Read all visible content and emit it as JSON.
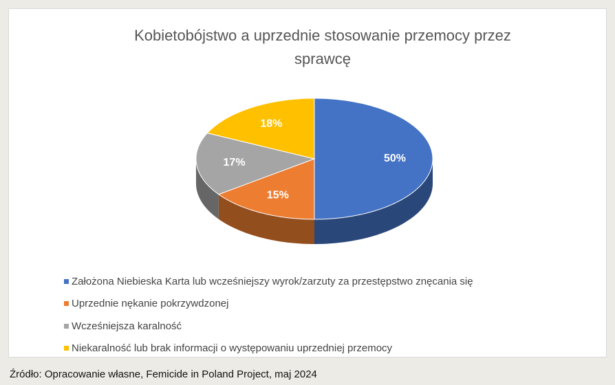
{
  "chart_data": {
    "type": "pie",
    "title": "Kobietobójstwo a uprzednie stosowanie przemocy przez sprawcę",
    "categories": [
      "Założona Niebieska Karta lub wcześniejszy wyrok/zarzuty za przestępstwo znęcania się",
      "Uprzednie nękanie pokrzywdzonej",
      "Wcześniejsza karalność",
      "Niekaralność lub brak informacji o występowaniu uprzedniej przemocy"
    ],
    "values": [
      50,
      15,
      17,
      18
    ],
    "value_labels": [
      "50%",
      "15%",
      "17%",
      "18%"
    ],
    "colors": [
      "#4472c4",
      "#ed7d31",
      "#a5a5a5",
      "#ffc000"
    ],
    "source": "Źródło: Opracowanie własne, Femicide in Poland Project, maj 2024"
  }
}
